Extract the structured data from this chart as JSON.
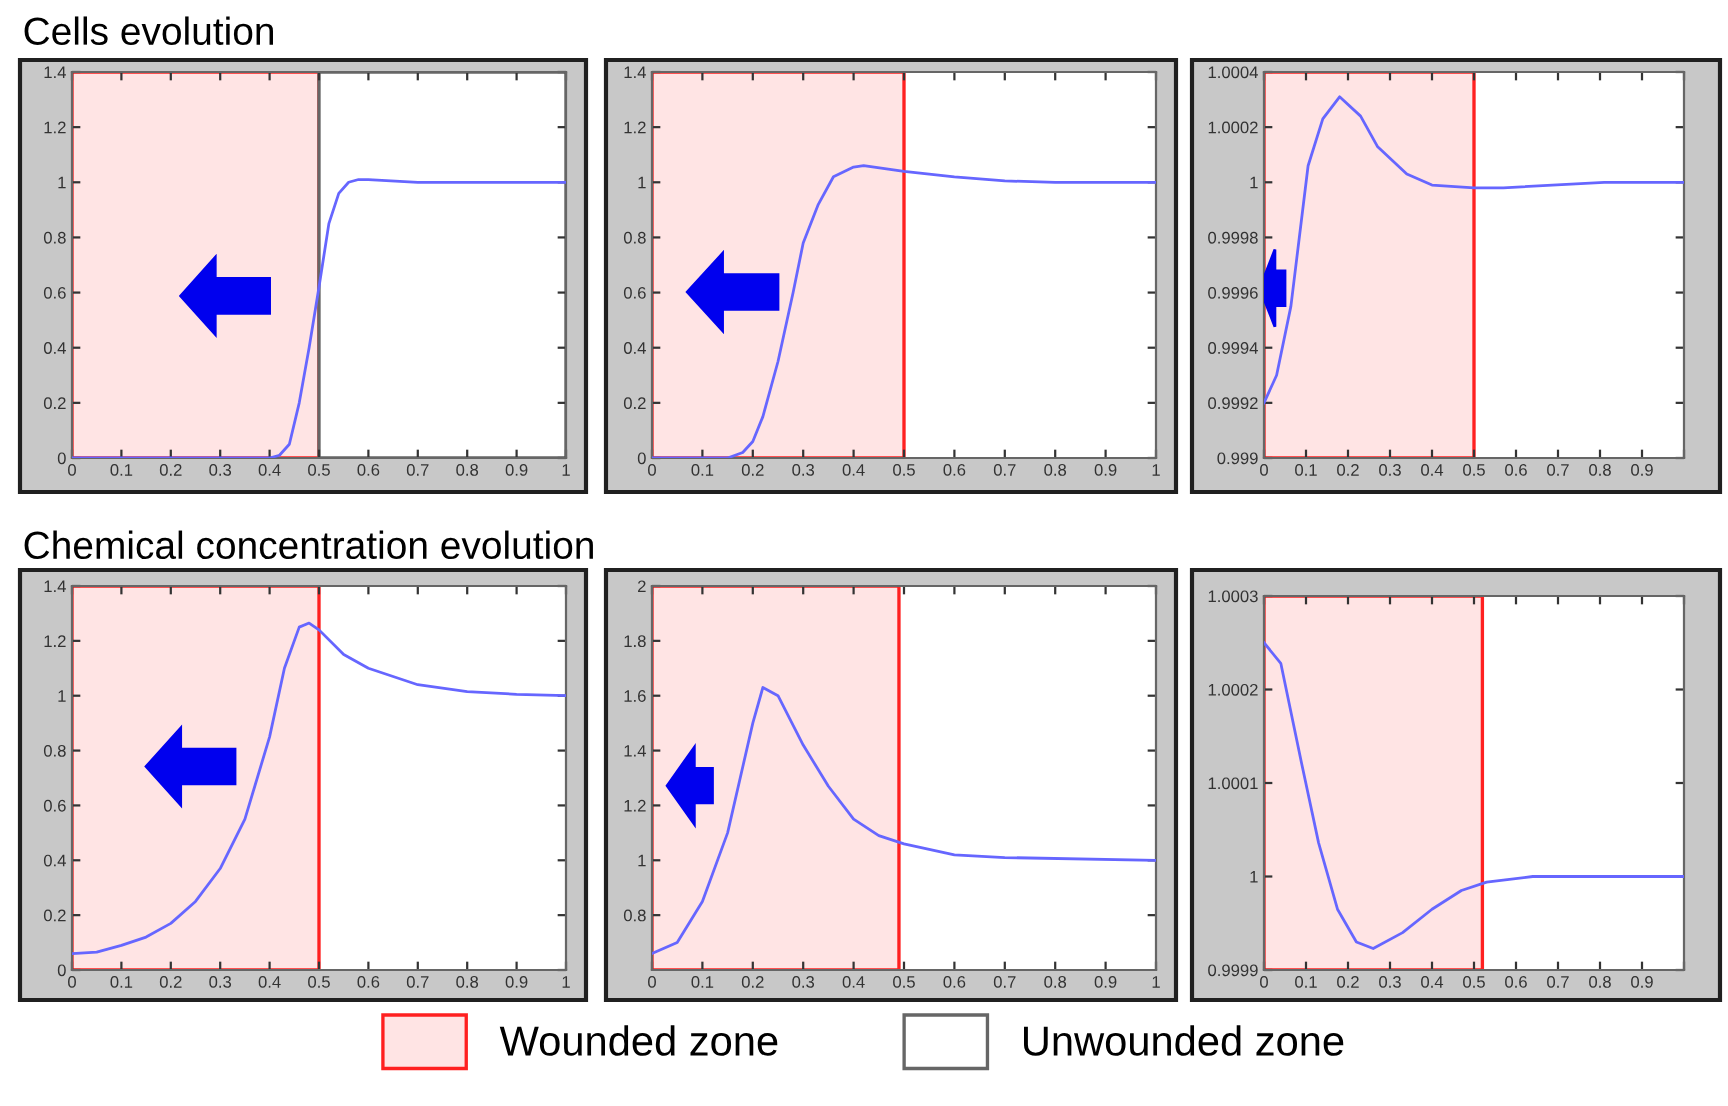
{
  "chart_data": [
    {
      "type": "line",
      "title": "Cells evolution",
      "xlim": [
        0,
        1
      ],
      "ylim": [
        0,
        1.4
      ],
      "xticks": [
        0,
        0.1,
        0.2,
        0.3,
        0.4,
        0.5,
        0.6,
        0.7,
        0.8,
        0.9,
        1
      ],
      "yticks": [
        0,
        0.2,
        0.4,
        0.6,
        0.8,
        1,
        1.2,
        1.4
      ],
      "grid": false,
      "legend": "bottom",
      "bands": [
        {
          "axis": "x",
          "from": 0,
          "to": 0.5,
          "label": "Wounded zone",
          "color": "#ffe4e4"
        },
        {
          "axis": "x",
          "from": 0.5,
          "to": 1,
          "label": "Unwounded zone",
          "color": "#ffffff"
        }
      ],
      "series": [
        {
          "color": "#6666ff",
          "x": [
            0,
            0.4,
            0.42,
            0.44,
            0.46,
            0.48,
            0.5,
            0.52,
            0.54,
            0.56,
            0.58,
            0.6,
            0.7,
            1
          ],
          "values": [
            0,
            0,
            0.01,
            0.05,
            0.2,
            0.4,
            0.62,
            0.85,
            0.96,
            1.0,
            1.01,
            1.01,
            1.0,
            1.0
          ]
        }
      ]
    },
    {
      "type": "line",
      "xlim": [
        0,
        1
      ],
      "ylim": [
        0,
        1.4
      ],
      "xticks": [
        0,
        0.1,
        0.2,
        0.3,
        0.4,
        0.5,
        0.6,
        0.7,
        0.8,
        0.9,
        1
      ],
      "yticks": [
        0,
        0.2,
        0.4,
        0.6,
        0.8,
        1,
        1.2,
        1.4
      ],
      "grid": false,
      "bands": [
        {
          "axis": "x",
          "from": 0,
          "to": 0.5,
          "color": "#ffe4e4"
        }
      ],
      "series": [
        {
          "color": "#6666ff",
          "x": [
            0,
            0.15,
            0.18,
            0.2,
            0.22,
            0.25,
            0.28,
            0.3,
            0.33,
            0.36,
            0.4,
            0.42,
            0.5,
            0.6,
            0.7,
            0.8,
            1
          ],
          "values": [
            0,
            0,
            0.02,
            0.06,
            0.15,
            0.35,
            0.6,
            0.78,
            0.92,
            1.02,
            1.055,
            1.06,
            1.04,
            1.02,
            1.005,
            1.0,
            1.0
          ]
        }
      ]
    },
    {
      "type": "line",
      "xlim": [
        0,
        1
      ],
      "ylim": [
        0.999,
        1.0004
      ],
      "xticks": [
        0,
        0.1,
        0.2,
        0.3,
        0.4,
        0.5,
        0.6,
        0.7,
        0.8,
        0.9,
        {
          "value": 1,
          "label": null
        }
      ],
      "yticks": [
        0.999,
        0.9992,
        0.9994,
        0.9996,
        0.9998,
        1,
        1.0002,
        1.0004
      ],
      "grid": false,
      "bands": [
        {
          "axis": "x",
          "from": 0,
          "to": 0.5,
          "color": "#ffe4e4"
        }
      ],
      "series": [
        {
          "color": "#6666ff",
          "x": [
            0,
            0.03,
            0.064,
            0.105,
            0.14,
            0.18,
            0.23,
            0.27,
            0.34,
            0.4,
            0.5,
            0.57,
            0.81,
            1
          ],
          "values": [
            0.9992,
            0.9993,
            0.99955,
            1.00006,
            1.00023,
            1.00031,
            1.00024,
            1.00013,
            1.00003,
            0.99999,
            0.99998,
            0.99998,
            1.0,
            1.0
          ]
        }
      ]
    },
    {
      "type": "line",
      "title": "Chemical concentration evolution",
      "xlim": [
        0,
        1
      ],
      "ylim": [
        0,
        1.4
      ],
      "xticks": [
        0,
        0.1,
        0.2,
        0.3,
        0.4,
        0.5,
        0.6,
        0.7,
        0.8,
        0.9,
        1
      ],
      "yticks": [
        0,
        0.2,
        0.4,
        0.6,
        0.8,
        1,
        1.2,
        1.4
      ],
      "grid": false,
      "bands": [
        {
          "axis": "x",
          "from": 0,
          "to": 0.5,
          "color": "#ffe4e4"
        }
      ],
      "series": [
        {
          "color": "#6666ff",
          "x": [
            0,
            0.05,
            0.1,
            0.15,
            0.2,
            0.25,
            0.3,
            0.35,
            0.4,
            0.43,
            0.46,
            0.48,
            0.5,
            0.55,
            0.6,
            0.7,
            0.8,
            0.9,
            1
          ],
          "values": [
            0.06,
            0.065,
            0.09,
            0.12,
            0.17,
            0.25,
            0.37,
            0.55,
            0.85,
            1.1,
            1.25,
            1.265,
            1.24,
            1.15,
            1.1,
            1.04,
            1.015,
            1.005,
            1.0
          ]
        }
      ]
    },
    {
      "type": "line",
      "xlim": [
        0,
        1
      ],
      "ylim": [
        0.6,
        2
      ],
      "xticks": [
        0,
        0.1,
        0.2,
        0.3,
        0.4,
        0.5,
        0.6,
        0.7,
        0.8,
        0.9,
        1
      ],
      "yticks": [
        0.8,
        1,
        1.2,
        1.4,
        1.6,
        1.8,
        2
      ],
      "grid": false,
      "bands": [
        {
          "axis": "x",
          "from": 0,
          "to": 0.49,
          "color": "#ffe4e4"
        }
      ],
      "series": [
        {
          "color": "#6666ff",
          "x": [
            0,
            0.05,
            0.1,
            0.15,
            0.2,
            0.22,
            0.25,
            0.3,
            0.35,
            0.4,
            0.45,
            0.5,
            0.6,
            0.7,
            1
          ],
          "values": [
            0.66,
            0.7,
            0.85,
            1.1,
            1.5,
            1.63,
            1.6,
            1.42,
            1.27,
            1.15,
            1.09,
            1.06,
            1.02,
            1.01,
            1.0
          ]
        }
      ]
    },
    {
      "type": "line",
      "xlim": [
        0,
        1
      ],
      "ylim": [
        0.9999,
        1.0003
      ],
      "xticks": [
        0,
        0.1,
        0.2,
        0.3,
        0.4,
        0.5,
        0.6,
        0.7,
        0.8,
        0.9,
        {
          "value": 1,
          "label": null
        }
      ],
      "yticks": [
        0.9999,
        1,
        1.0001,
        1.0002,
        1.0003
      ],
      "grid": false,
      "bands": [
        {
          "axis": "x",
          "from": 0,
          "to": 0.52,
          "color": "#ffe4e4"
        }
      ],
      "series": [
        {
          "color": "#6666ff",
          "x": [
            0,
            0.04,
            0.09,
            0.13,
            0.175,
            0.22,
            0.26,
            0.33,
            0.4,
            0.47,
            0.53,
            0.64,
            0.8,
            1
          ],
          "values": [
            1.00025,
            1.000228,
            1.00012,
            1.000036,
            0.999965,
            0.99993,
            0.999923,
            0.99994,
            0.999965,
            0.999985,
            0.999994,
            1.0,
            1.0,
            1.0
          ]
        }
      ]
    }
  ]
}
